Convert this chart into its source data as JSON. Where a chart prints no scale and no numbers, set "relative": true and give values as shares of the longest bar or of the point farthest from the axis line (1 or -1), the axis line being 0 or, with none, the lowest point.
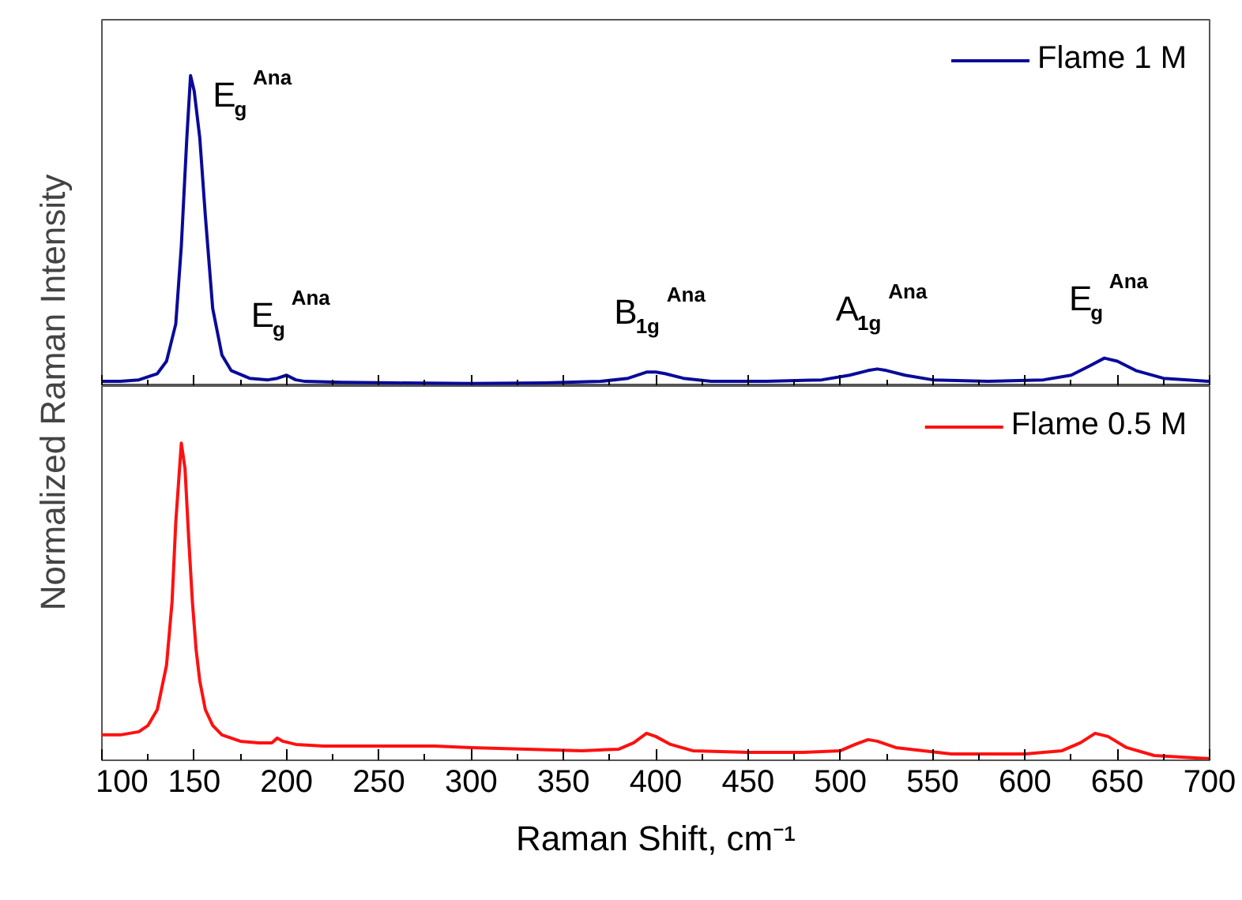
{
  "chart_data": [
    {
      "type": "line",
      "relative": true,
      "ylabel": "Normalized Raman Intensity",
      "xlim": [
        100,
        700
      ],
      "xticks": [
        100,
        150,
        200,
        250,
        300,
        350,
        400,
        450,
        500,
        550,
        600,
        650,
        700
      ],
      "tick_labels": false,
      "grid": false,
      "legend": "top right",
      "series": [
        {
          "name": "Flame 1 M",
          "color": "#0a0a9a",
          "x": [
            100,
            110,
            120,
            130,
            135,
            140,
            143,
            146,
            148,
            150,
            153,
            156,
            160,
            165,
            170,
            180,
            190,
            195,
            200,
            205,
            210,
            230,
            260,
            300,
            340,
            370,
            385,
            395,
            400,
            405,
            415,
            430,
            460,
            490,
            505,
            515,
            520,
            525,
            535,
            550,
            580,
            610,
            625,
            635,
            643,
            650,
            660,
            675,
            700
          ],
          "values": [
            0.015,
            0.015,
            0.02,
            0.04,
            0.08,
            0.2,
            0.45,
            0.8,
            1,
            0.95,
            0.8,
            0.55,
            0.25,
            0.1,
            0.05,
            0.025,
            0.02,
            0.025,
            0.035,
            0.02,
            0.015,
            0.012,
            0.01,
            0.008,
            0.01,
            0.015,
            0.025,
            0.045,
            0.045,
            0.04,
            0.025,
            0.015,
            0.015,
            0.02,
            0.035,
            0.05,
            0.055,
            0.05,
            0.035,
            0.02,
            0.015,
            0.02,
            0.035,
            0.065,
            0.09,
            0.08,
            0.05,
            0.025,
            0.015
          ]
        }
      ],
      "annotations": [
        {
          "text": "E$_{g}$$^{Ana}$",
          "x": 148,
          "y": 1
        },
        {
          "text": "E$_{g}$$^{Ana}$",
          "x": 200,
          "y": 0.035
        },
        {
          "text": "B$_{1g}$$^{Ana}$",
          "x": 400,
          "y": 0.045
        },
        {
          "text": "A$_{1g}$$^{Ana}$",
          "x": 520,
          "y": 0.055
        },
        {
          "text": "E$_{g}$$^{Ana}$",
          "x": 643,
          "y": 0.09
        }
      ]
    },
    {
      "type": "line",
      "relative": true,
      "xlabel": "Raman Shift, cm⁻¹",
      "xlim": [
        100,
        700
      ],
      "xticks": [
        100,
        150,
        200,
        250,
        300,
        350,
        400,
        450,
        500,
        550,
        600,
        650,
        700
      ],
      "tick_labels": "x",
      "grid": false,
      "legend": "top right",
      "series": [
        {
          "name": "Flame 0.5 M",
          "color": "#ff1010",
          "x": [
            100,
            110,
            120,
            125,
            130,
            135,
            138,
            140,
            143,
            145,
            147,
            149,
            151,
            153,
            156,
            160,
            165,
            175,
            185,
            192,
            195,
            198,
            205,
            220,
            250,
            280,
            300,
            330,
            360,
            380,
            388,
            395,
            400,
            408,
            420,
            450,
            480,
            500,
            508,
            515,
            520,
            530,
            560,
            600,
            620,
            630,
            638,
            645,
            655,
            670,
            700
          ],
          "values": [
            0.08,
            0.08,
            0.09,
            0.11,
            0.16,
            0.3,
            0.5,
            0.75,
            1,
            0.92,
            0.7,
            0.5,
            0.35,
            0.25,
            0.16,
            0.11,
            0.08,
            0.06,
            0.055,
            0.055,
            0.07,
            0.06,
            0.05,
            0.045,
            0.045,
            0.045,
            0.04,
            0.035,
            0.03,
            0.035,
            0.055,
            0.085,
            0.075,
            0.05,
            0.03,
            0.025,
            0.025,
            0.03,
            0.05,
            0.065,
            0.06,
            0.04,
            0.02,
            0.02,
            0.03,
            0.055,
            0.085,
            0.075,
            0.04,
            0.015,
            0.005
          ]
        }
      ]
    }
  ]
}
